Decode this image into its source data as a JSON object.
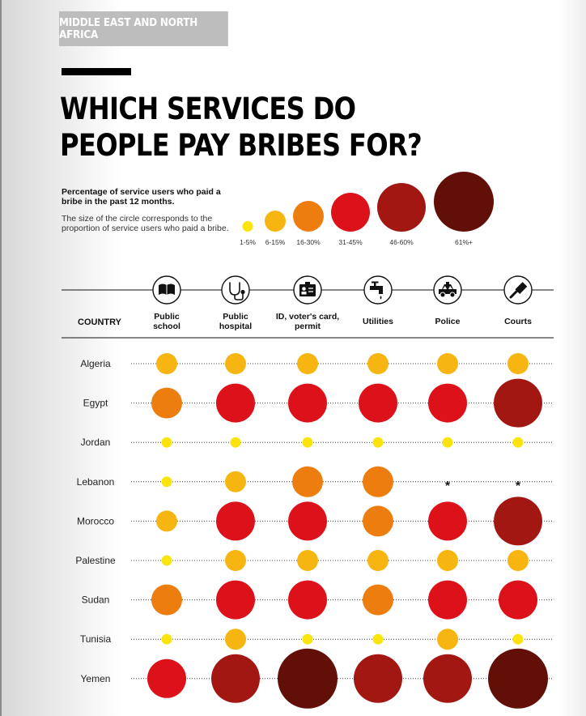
{
  "header": {
    "region": "MIDDLE EAST AND NORTH AFRICA",
    "title_line1": "WHICH SERVICES DO",
    "title_line2": "PEOPLE PAY BRIBES FOR?"
  },
  "legend": {
    "heading": "Percentage of service users who paid a bribe in the past 12 months.",
    "note": "The size of the circle corresponds to the proportion of service users who paid a bribe."
  },
  "colors": {
    "level1": "#fbe30e",
    "level2": "#f7b512",
    "level3": "#ee7d10",
    "level4": "#dc1119",
    "level5": "#a31712",
    "level6": "#620f08"
  },
  "chart_data": {
    "type": "bubble-matrix",
    "title": "WHICH SERVICES DO PEOPLE PAY BRIBES FOR?",
    "row_header": "COUNTRY",
    "categories": [
      "Public school",
      "Public hospital",
      "ID, voter's card, permit",
      "Utilities",
      "Police",
      "Courts"
    ],
    "category_lines": [
      [
        "Public",
        "school"
      ],
      [
        "Public",
        "hospital"
      ],
      [
        "ID, voter's card,",
        "permit"
      ],
      [
        "Utilities"
      ],
      [
        "Police"
      ],
      [
        "Courts"
      ]
    ],
    "category_icons": [
      "book-icon",
      "stethoscope-icon",
      "id-card-icon",
      "faucet-icon",
      "police-car-icon",
      "gavel-icon"
    ],
    "levels": [
      {
        "level": 1,
        "label": "1-5%"
      },
      {
        "level": 2,
        "label": "6-15%"
      },
      {
        "level": 3,
        "label": "16-30%"
      },
      {
        "level": 4,
        "label": "31-45%"
      },
      {
        "level": 5,
        "label": "46-60%"
      },
      {
        "level": 6,
        "label": "61%+"
      }
    ],
    "no_data_marker": "*",
    "rows": [
      {
        "country": "Algeria",
        "values": [
          2,
          2,
          2,
          2,
          2,
          2
        ]
      },
      {
        "country": "Egypt",
        "values": [
          3,
          4,
          4,
          4,
          4,
          5
        ]
      },
      {
        "country": "Jordan",
        "values": [
          1,
          1,
          1,
          1,
          1,
          1
        ]
      },
      {
        "country": "Lebanon",
        "values": [
          1,
          2,
          3,
          3,
          null,
          null
        ]
      },
      {
        "country": "Morocco",
        "values": [
          2,
          4,
          4,
          3,
          4,
          5
        ]
      },
      {
        "country": "Palestine",
        "values": [
          1,
          2,
          2,
          2,
          2,
          2
        ]
      },
      {
        "country": "Sudan",
        "values": [
          3,
          4,
          4,
          3,
          4,
          4
        ]
      },
      {
        "country": "Tunisia",
        "values": [
          1,
          2,
          1,
          1,
          2,
          1
        ]
      },
      {
        "country": "Yemen",
        "values": [
          4,
          5,
          6,
          5,
          5,
          6
        ]
      }
    ]
  }
}
